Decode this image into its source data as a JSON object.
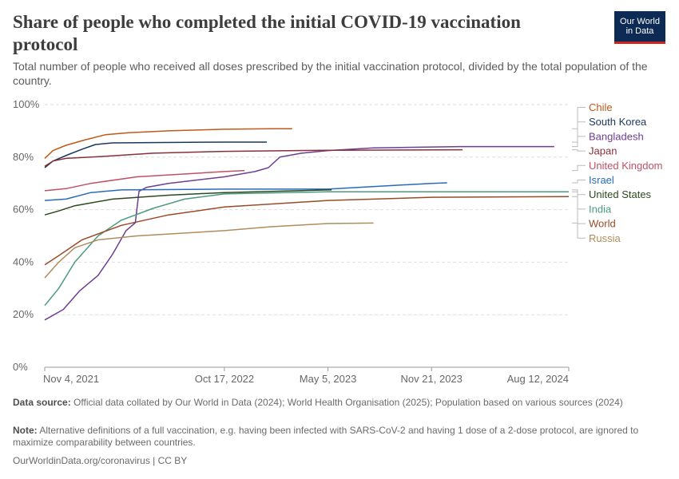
{
  "header": {
    "title": "Share of people who completed the initial COVID-19 vaccination protocol",
    "subtitle": "Total number of people who received all doses prescribed by the initial vaccination protocol, divided by the total population of the country.",
    "logo_line1": "Our World",
    "logo_line2": "in Data"
  },
  "footer": {
    "source_label": "Data source:",
    "source_text": "Official data collated by Our World in Data (2024); World Health Organisation (2025); Population based on various sources (2024)",
    "note_label": "Note:",
    "note_text": "Alternative definitions of a full vaccination, e.g. having been infected with SARS-CoV-2 and having 1 dose of a 2-dose protocol, are ignored to maximize comparability between countries.",
    "credit": "OurWorldinData.org/coronavirus | CC BY"
  },
  "colors": {
    "Chile": "#c05917",
    "South Korea": "#18375f",
    "Bangladesh": "#6d3e91",
    "Japan": "#883039",
    "United Kingdom": "#c15065",
    "Israel": "#286bbb",
    "United States": "#2c4a1e",
    "India": "#4c9a81",
    "World": "#9a4a29",
    "Russia": "#b08c5e"
  },
  "chart_data": {
    "type": "line",
    "title": "Share of people who completed the initial COVID-19 vaccination protocol",
    "xlabel": "",
    "ylabel": "",
    "x_type": "date",
    "xlim": [
      "2021-11-04",
      "2024-08-12"
    ],
    "ylim": [
      0,
      100
    ],
    "x_ticks": [
      "2021-11-04",
      "2022-10-17",
      "2023-05-05",
      "2023-11-21",
      "2024-08-12"
    ],
    "x_tick_labels": [
      "Nov 4, 2021",
      "Oct 17, 2022",
      "May 5, 2023",
      "Nov 21, 2023",
      "Aug 12, 2024"
    ],
    "y_ticks": [
      0,
      20,
      40,
      60,
      80,
      100
    ],
    "y_tick_labels": [
      "0%",
      "20%",
      "40%",
      "60%",
      "80%",
      "100%"
    ],
    "y_unit": "%",
    "grid": "horizontal dashed",
    "legend": "right",
    "series": [
      {
        "name": "Chile",
        "points": [
          [
            "2021-11-04",
            79.5
          ],
          [
            "2021-11-20",
            82.5
          ],
          [
            "2021-12-15",
            84.5
          ],
          [
            "2022-01-20",
            86.5
          ],
          [
            "2022-03-01",
            88.5
          ],
          [
            "2022-04-15",
            89.3
          ],
          [
            "2022-07-01",
            90.0
          ],
          [
            "2022-10-17",
            90.6
          ],
          [
            "2023-01-15",
            90.8
          ],
          [
            "2023-02-25",
            90.8
          ]
        ]
      },
      {
        "name": "South Korea",
        "points": [
          [
            "2021-11-04",
            76.0
          ],
          [
            "2021-11-20",
            78.5
          ],
          [
            "2021-12-20",
            81.0
          ],
          [
            "2022-01-15",
            83.0
          ],
          [
            "2022-02-10",
            84.8
          ],
          [
            "2022-03-15",
            85.4
          ],
          [
            "2022-05-01",
            85.5
          ],
          [
            "2022-10-17",
            85.7
          ],
          [
            "2023-01-07",
            85.7
          ]
        ]
      },
      {
        "name": "Bangladesh",
        "points": [
          [
            "2021-11-04",
            18.0
          ],
          [
            "2021-12-10",
            22.0
          ],
          [
            "2022-01-10",
            29.0
          ],
          [
            "2022-02-15",
            35.0
          ],
          [
            "2022-03-15",
            43.0
          ],
          [
            "2022-04-10",
            52.0
          ],
          [
            "2022-04-28",
            55.0
          ],
          [
            "2022-05-05",
            67.0
          ],
          [
            "2022-05-20",
            68.5
          ],
          [
            "2022-07-01",
            70.0
          ],
          [
            "2022-10-17",
            72.5
          ],
          [
            "2022-12-15",
            74.5
          ],
          [
            "2023-01-10",
            76.0
          ],
          [
            "2023-02-01",
            80.0
          ],
          [
            "2023-03-15",
            81.5
          ],
          [
            "2023-05-05",
            82.5
          ],
          [
            "2023-08-01",
            83.5
          ],
          [
            "2024-01-15",
            84.0
          ],
          [
            "2024-07-15",
            84.0
          ]
        ]
      },
      {
        "name": "Japan",
        "points": [
          [
            "2021-11-04",
            76.5
          ],
          [
            "2021-11-20",
            78.5
          ],
          [
            "2021-12-15",
            79.5
          ],
          [
            "2022-03-01",
            80.3
          ],
          [
            "2022-06-01",
            81.5
          ],
          [
            "2022-10-17",
            82.2
          ],
          [
            "2023-05-05",
            82.6
          ],
          [
            "2024-01-20",
            82.8
          ]
        ]
      },
      {
        "name": "United Kingdom",
        "points": [
          [
            "2021-11-04",
            67.2
          ],
          [
            "2021-12-15",
            68.0
          ],
          [
            "2022-02-01",
            70.0
          ],
          [
            "2022-05-01",
            72.5
          ],
          [
            "2022-10-17",
            74.5
          ],
          [
            "2022-11-25",
            74.9
          ]
        ]
      },
      {
        "name": "Israel",
        "points": [
          [
            "2021-11-04",
            63.5
          ],
          [
            "2021-12-15",
            64.0
          ],
          [
            "2022-02-01",
            66.5
          ],
          [
            "2022-04-01",
            67.5
          ],
          [
            "2022-10-17",
            67.8
          ],
          [
            "2023-05-05",
            67.8
          ],
          [
            "2023-11-21",
            70.0
          ],
          [
            "2023-12-21",
            70.2
          ]
        ]
      },
      {
        "name": "United States",
        "points": [
          [
            "2021-11-04",
            58.0
          ],
          [
            "2021-12-01",
            59.5
          ],
          [
            "2022-01-01",
            61.5
          ],
          [
            "2022-03-15",
            64.0
          ],
          [
            "2022-07-01",
            65.5
          ],
          [
            "2022-10-17",
            66.5
          ],
          [
            "2023-05-05",
            67.5
          ],
          [
            "2023-05-12",
            67.5
          ]
        ]
      },
      {
        "name": "India",
        "points": [
          [
            "2021-11-04",
            23.5
          ],
          [
            "2021-12-01",
            30.0
          ],
          [
            "2022-01-01",
            40.0
          ],
          [
            "2022-02-15",
            50.0
          ],
          [
            "2022-04-01",
            56.0
          ],
          [
            "2022-06-01",
            60.5
          ],
          [
            "2022-08-01",
            64.0
          ],
          [
            "2022-10-17",
            66.0
          ],
          [
            "2023-05-05",
            66.8
          ],
          [
            "2024-08-12",
            66.8
          ]
        ]
      },
      {
        "name": "World",
        "points": [
          [
            "2021-11-04",
            39.0
          ],
          [
            "2021-12-01",
            42.5
          ],
          [
            "2022-01-15",
            48.5
          ],
          [
            "2022-04-01",
            54.0
          ],
          [
            "2022-07-01",
            58.0
          ],
          [
            "2022-10-17",
            61.0
          ],
          [
            "2023-05-05",
            63.5
          ],
          [
            "2023-11-21",
            64.7
          ],
          [
            "2024-08-12",
            65.0
          ]
        ]
      },
      {
        "name": "Russia",
        "points": [
          [
            "2021-11-04",
            34.0
          ],
          [
            "2021-12-01",
            40.0
          ],
          [
            "2022-01-01",
            45.5
          ],
          [
            "2022-02-15",
            48.5
          ],
          [
            "2022-05-01",
            50.0
          ],
          [
            "2022-10-17",
            52.0
          ],
          [
            "2023-01-15",
            53.5
          ],
          [
            "2023-05-05",
            54.7
          ],
          [
            "2023-08-01",
            54.9
          ]
        ]
      }
    ]
  }
}
